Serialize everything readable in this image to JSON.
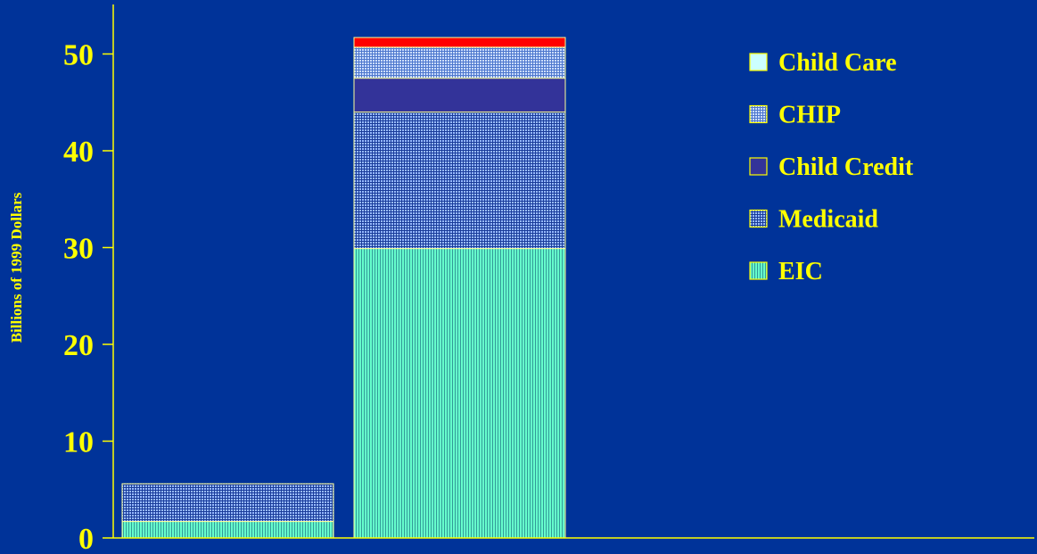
{
  "chart_data": {
    "type": "bar",
    "stacked": true,
    "categories": [
      "",
      ""
    ],
    "ylabel": "Billions of 1999 Dollars",
    "ylim": [
      0,
      50
    ],
    "yticks": [
      0,
      10,
      20,
      30,
      40,
      50
    ],
    "legend_position": "top-right",
    "series": [
      {
        "name": "EIC",
        "values": [
          1.7,
          29.9
        ],
        "color": "#66ffcc",
        "pattern": "vertical-lines"
      },
      {
        "name": "Medicaid",
        "values": [
          3.9,
          14.1
        ],
        "color": "#3366cc",
        "pattern": "dense-grid"
      },
      {
        "name": "Child Credit",
        "values": [
          0,
          3.5
        ],
        "color": "#333399",
        "pattern": "solid"
      },
      {
        "name": "CHIP",
        "values": [
          0,
          3.2
        ],
        "color": "#6699cc",
        "pattern": "light-grid"
      },
      {
        "name": "Child Care",
        "values": [
          0,
          1.0
        ],
        "color": "#ff0000",
        "pattern": "solid"
      }
    ],
    "legend_order": [
      "Child Care",
      "CHIP",
      "Child Credit",
      "Medicaid",
      "EIC"
    ],
    "legend_colors": {
      "Child Care": "#ccffff",
      "CHIP": "#99ccff",
      "Child Credit": "#333399",
      "Medicaid": "#6699ff",
      "EIC": "#66ffcc"
    },
    "colors": {
      "background": "#003399",
      "text": "#ffff00",
      "axis": "#ffff00",
      "bar_outline": "#ffff99"
    }
  }
}
